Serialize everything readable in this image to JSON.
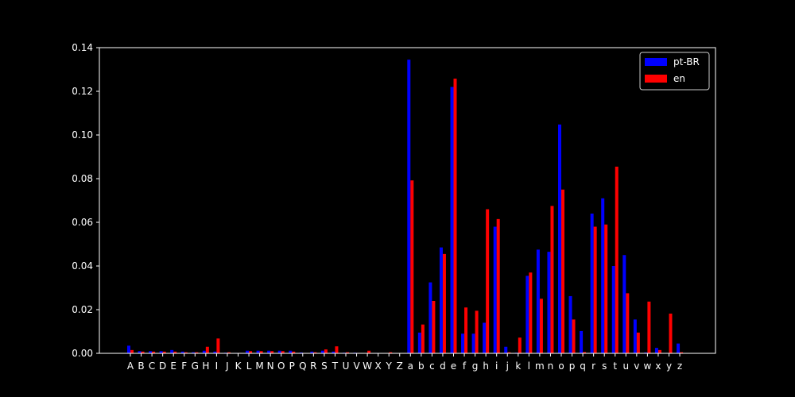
{
  "chart_data": {
    "type": "bar",
    "categories": [
      "A",
      "B",
      "C",
      "D",
      "E",
      "F",
      "G",
      "H",
      "I",
      "J",
      "K",
      "L",
      "M",
      "N",
      "O",
      "P",
      "Q",
      "R",
      "S",
      "T",
      "U",
      "V",
      "W",
      "X",
      "Y",
      "Z",
      "a",
      "b",
      "c",
      "d",
      "e",
      "f",
      "g",
      "h",
      "i",
      "j",
      "k",
      "l",
      "m",
      "n",
      "o",
      "p",
      "q",
      "r",
      "s",
      "t",
      "u",
      "v",
      "w",
      "x",
      "y",
      "z"
    ],
    "series": [
      {
        "name": "pt-BR",
        "color": "#0000ff",
        "values": [
          0.0035,
          0.001,
          0.001,
          0.001,
          0.0015,
          0.0008,
          0.0005,
          0.0012,
          0.0008,
          0.0003,
          0.0002,
          0.0012,
          0.0012,
          0.0012,
          0.0012,
          0.0012,
          0.0004,
          0.0008,
          0.0012,
          0.0008,
          0.0003,
          0.0003,
          0.0001,
          0.0002,
          0.0001,
          0.0001,
          0.1345,
          0.0095,
          0.0325,
          0.0485,
          0.122,
          0.009,
          0.009,
          0.014,
          0.058,
          0.003,
          0.0003,
          0.0355,
          0.0475,
          0.0465,
          0.1048,
          0.0262,
          0.0102,
          0.064,
          0.071,
          0.04,
          0.045,
          0.0155,
          0.0004,
          0.0025,
          0.0002,
          0.0045
        ]
      },
      {
        "name": "en",
        "color": "#ff0000",
        "values": [
          0.0015,
          0.0008,
          0.0008,
          0.0008,
          0.0008,
          0.0005,
          0.0005,
          0.003,
          0.0068,
          0.0005,
          0.0002,
          0.001,
          0.001,
          0.001,
          0.001,
          0.0008,
          0.0002,
          0.0005,
          0.0018,
          0.0032,
          0.0005,
          0.0002,
          0.0012,
          0.0001,
          0.0005,
          0.0001,
          0.0792,
          0.0132,
          0.024,
          0.0455,
          0.1258,
          0.021,
          0.0195,
          0.066,
          0.0615,
          0.0005,
          0.0072,
          0.037,
          0.025,
          0.0675,
          0.075,
          0.0155,
          0.0006,
          0.058,
          0.059,
          0.0855,
          0.0275,
          0.0095,
          0.0237,
          0.0015,
          0.0182,
          0.0005
        ]
      }
    ],
    "title": "",
    "xlabel": "",
    "ylabel": "",
    "ylim": [
      0,
      0.14
    ],
    "yticks": [
      "0.00",
      "0.02",
      "0.04",
      "0.06",
      "0.08",
      "0.10",
      "0.12",
      "0.14"
    ],
    "grid": false,
    "legend": "top-right",
    "background": "#000000",
    "foreground": "#ffffff"
  }
}
